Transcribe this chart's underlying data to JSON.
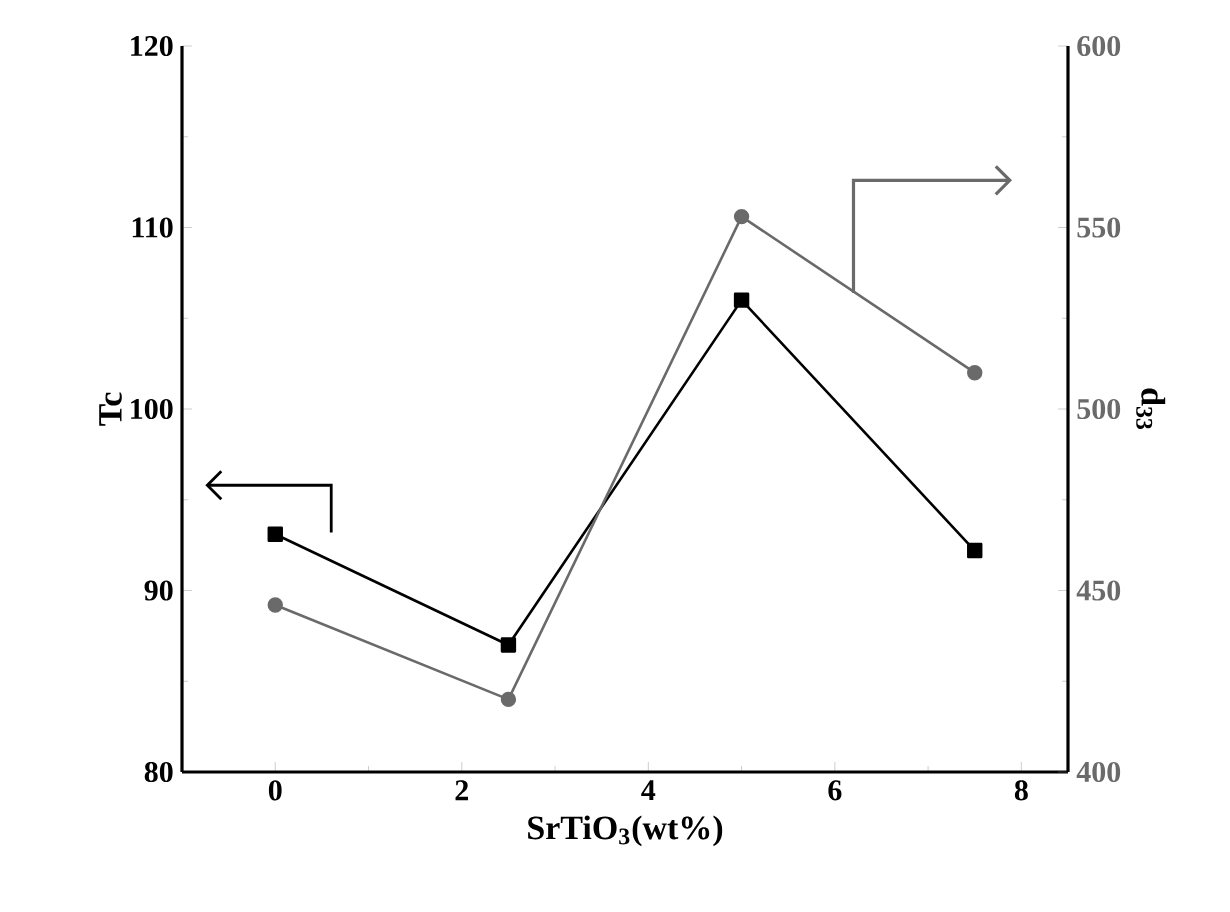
{
  "chart_data": {
    "type": "line",
    "xlabel": "SrTiO$_{3}$(wt%)",
    "ylabel": "Tc",
    "y2label": "d$_{33}$",
    "x": [
      0,
      2.5,
      5,
      7.5
    ],
    "series": [
      {
        "color": "#000000",
        "marker": "square",
        "values": [
          93.1,
          87.0,
          106.0,
          92.2
        ]
      },
      {
        "color": "#6a6a6a",
        "marker": "circle",
        "axis": "y2",
        "values": [
          446,
          420,
          553,
          510
        ]
      }
    ],
    "xlim": [
      -1,
      8.5
    ],
    "xticks": [
      0,
      2,
      4,
      6,
      8
    ],
    "ylim": [
      80,
      120
    ],
    "yticks": [
      80,
      90,
      100,
      110,
      120
    ],
    "y2lim": [
      400,
      600
    ],
    "y2ticks": [
      400,
      450,
      500,
      550,
      600
    ],
    "line_style": "solid"
  }
}
